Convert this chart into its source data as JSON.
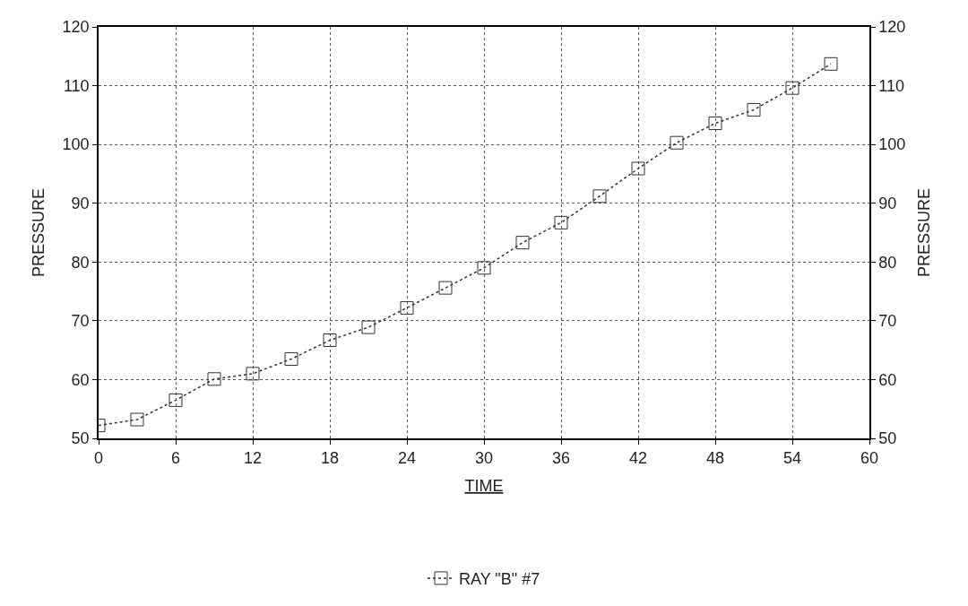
{
  "chart_data": {
    "type": "line",
    "xlabel": "TIME",
    "ylabel": "PRESSURE",
    "y2label": "PRESSURE",
    "x": [
      0,
      3,
      6,
      9,
      12,
      15,
      18,
      21,
      24,
      27,
      30,
      33,
      36,
      39,
      42,
      45,
      48,
      51,
      54,
      57
    ],
    "series": [
      {
        "name": "RAY \"B\" #7",
        "color": "#333333",
        "values": [
          52.2,
          53.2,
          56.5,
          60.1,
          61.0,
          63.5,
          66.7,
          68.9,
          72.2,
          75.6,
          79.0,
          83.3,
          86.7,
          91.2,
          95.9,
          100.3,
          103.6,
          105.9,
          109.6,
          113.7
        ]
      }
    ],
    "xlim": [
      0,
      60
    ],
    "xticks": [
      0,
      6,
      12,
      18,
      24,
      30,
      36,
      42,
      48,
      54,
      60
    ],
    "ylim": [
      50,
      120
    ],
    "yticks": [
      50,
      60,
      70,
      80,
      90,
      100,
      110,
      120
    ],
    "y2lim": [
      50,
      120
    ],
    "y2ticks": [
      50,
      60,
      70,
      80,
      90,
      100,
      110,
      120
    ],
    "grid": true,
    "legend": "bottom",
    "marker": "square",
    "line_style": "dotted"
  }
}
